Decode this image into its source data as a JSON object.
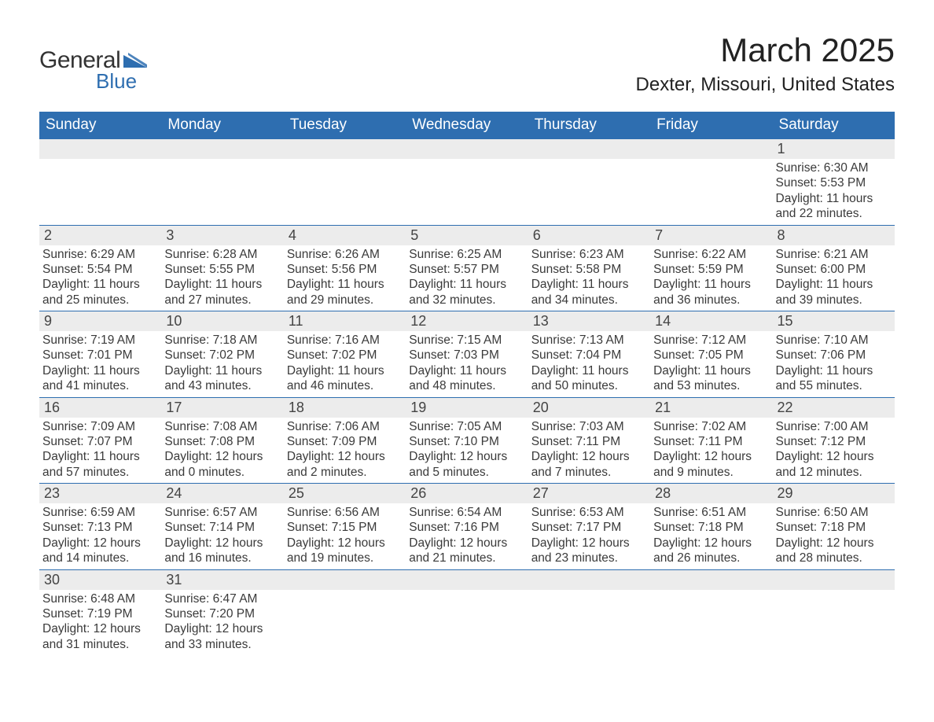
{
  "logo": {
    "text1": "General",
    "text2": "Blue",
    "shape_color": "#2e6eb0"
  },
  "title": "March 2025",
  "location": "Dexter, Missouri, United States",
  "colors": {
    "header_bg": "#2e6eb0",
    "header_text": "#ffffff",
    "daynum_bg": "#ececec",
    "body_text": "#3a3a3a",
    "border": "#2e6eb0"
  },
  "daysOfWeek": [
    "Sunday",
    "Monday",
    "Tuesday",
    "Wednesday",
    "Thursday",
    "Friday",
    "Saturday"
  ],
  "weeks": [
    [
      null,
      null,
      null,
      null,
      null,
      null,
      {
        "num": "1",
        "sunrise": "Sunrise: 6:30 AM",
        "sunset": "Sunset: 5:53 PM",
        "daylight": "Daylight: 11 hours and 22 minutes."
      }
    ],
    [
      {
        "num": "2",
        "sunrise": "Sunrise: 6:29 AM",
        "sunset": "Sunset: 5:54 PM",
        "daylight": "Daylight: 11 hours and 25 minutes."
      },
      {
        "num": "3",
        "sunrise": "Sunrise: 6:28 AM",
        "sunset": "Sunset: 5:55 PM",
        "daylight": "Daylight: 11 hours and 27 minutes."
      },
      {
        "num": "4",
        "sunrise": "Sunrise: 6:26 AM",
        "sunset": "Sunset: 5:56 PM",
        "daylight": "Daylight: 11 hours and 29 minutes."
      },
      {
        "num": "5",
        "sunrise": "Sunrise: 6:25 AM",
        "sunset": "Sunset: 5:57 PM",
        "daylight": "Daylight: 11 hours and 32 minutes."
      },
      {
        "num": "6",
        "sunrise": "Sunrise: 6:23 AM",
        "sunset": "Sunset: 5:58 PM",
        "daylight": "Daylight: 11 hours and 34 minutes."
      },
      {
        "num": "7",
        "sunrise": "Sunrise: 6:22 AM",
        "sunset": "Sunset: 5:59 PM",
        "daylight": "Daylight: 11 hours and 36 minutes."
      },
      {
        "num": "8",
        "sunrise": "Sunrise: 6:21 AM",
        "sunset": "Sunset: 6:00 PM",
        "daylight": "Daylight: 11 hours and 39 minutes."
      }
    ],
    [
      {
        "num": "9",
        "sunrise": "Sunrise: 7:19 AM",
        "sunset": "Sunset: 7:01 PM",
        "daylight": "Daylight: 11 hours and 41 minutes."
      },
      {
        "num": "10",
        "sunrise": "Sunrise: 7:18 AM",
        "sunset": "Sunset: 7:02 PM",
        "daylight": "Daylight: 11 hours and 43 minutes."
      },
      {
        "num": "11",
        "sunrise": "Sunrise: 7:16 AM",
        "sunset": "Sunset: 7:02 PM",
        "daylight": "Daylight: 11 hours and 46 minutes."
      },
      {
        "num": "12",
        "sunrise": "Sunrise: 7:15 AM",
        "sunset": "Sunset: 7:03 PM",
        "daylight": "Daylight: 11 hours and 48 minutes."
      },
      {
        "num": "13",
        "sunrise": "Sunrise: 7:13 AM",
        "sunset": "Sunset: 7:04 PM",
        "daylight": "Daylight: 11 hours and 50 minutes."
      },
      {
        "num": "14",
        "sunrise": "Sunrise: 7:12 AM",
        "sunset": "Sunset: 7:05 PM",
        "daylight": "Daylight: 11 hours and 53 minutes."
      },
      {
        "num": "15",
        "sunrise": "Sunrise: 7:10 AM",
        "sunset": "Sunset: 7:06 PM",
        "daylight": "Daylight: 11 hours and 55 minutes."
      }
    ],
    [
      {
        "num": "16",
        "sunrise": "Sunrise: 7:09 AM",
        "sunset": "Sunset: 7:07 PM",
        "daylight": "Daylight: 11 hours and 57 minutes."
      },
      {
        "num": "17",
        "sunrise": "Sunrise: 7:08 AM",
        "sunset": "Sunset: 7:08 PM",
        "daylight": "Daylight: 12 hours and 0 minutes."
      },
      {
        "num": "18",
        "sunrise": "Sunrise: 7:06 AM",
        "sunset": "Sunset: 7:09 PM",
        "daylight": "Daylight: 12 hours and 2 minutes."
      },
      {
        "num": "19",
        "sunrise": "Sunrise: 7:05 AM",
        "sunset": "Sunset: 7:10 PM",
        "daylight": "Daylight: 12 hours and 5 minutes."
      },
      {
        "num": "20",
        "sunrise": "Sunrise: 7:03 AM",
        "sunset": "Sunset: 7:11 PM",
        "daylight": "Daylight: 12 hours and 7 minutes."
      },
      {
        "num": "21",
        "sunrise": "Sunrise: 7:02 AM",
        "sunset": "Sunset: 7:11 PM",
        "daylight": "Daylight: 12 hours and 9 minutes."
      },
      {
        "num": "22",
        "sunrise": "Sunrise: 7:00 AM",
        "sunset": "Sunset: 7:12 PM",
        "daylight": "Daylight: 12 hours and 12 minutes."
      }
    ],
    [
      {
        "num": "23",
        "sunrise": "Sunrise: 6:59 AM",
        "sunset": "Sunset: 7:13 PM",
        "daylight": "Daylight: 12 hours and 14 minutes."
      },
      {
        "num": "24",
        "sunrise": "Sunrise: 6:57 AM",
        "sunset": "Sunset: 7:14 PM",
        "daylight": "Daylight: 12 hours and 16 minutes."
      },
      {
        "num": "25",
        "sunrise": "Sunrise: 6:56 AM",
        "sunset": "Sunset: 7:15 PM",
        "daylight": "Daylight: 12 hours and 19 minutes."
      },
      {
        "num": "26",
        "sunrise": "Sunrise: 6:54 AM",
        "sunset": "Sunset: 7:16 PM",
        "daylight": "Daylight: 12 hours and 21 minutes."
      },
      {
        "num": "27",
        "sunrise": "Sunrise: 6:53 AM",
        "sunset": "Sunset: 7:17 PM",
        "daylight": "Daylight: 12 hours and 23 minutes."
      },
      {
        "num": "28",
        "sunrise": "Sunrise: 6:51 AM",
        "sunset": "Sunset: 7:18 PM",
        "daylight": "Daylight: 12 hours and 26 minutes."
      },
      {
        "num": "29",
        "sunrise": "Sunrise: 6:50 AM",
        "sunset": "Sunset: 7:18 PM",
        "daylight": "Daylight: 12 hours and 28 minutes."
      }
    ],
    [
      {
        "num": "30",
        "sunrise": "Sunrise: 6:48 AM",
        "sunset": "Sunset: 7:19 PM",
        "daylight": "Daylight: 12 hours and 31 minutes."
      },
      {
        "num": "31",
        "sunrise": "Sunrise: 6:47 AM",
        "sunset": "Sunset: 7:20 PM",
        "daylight": "Daylight: 12 hours and 33 minutes."
      },
      null,
      null,
      null,
      null,
      null
    ]
  ]
}
